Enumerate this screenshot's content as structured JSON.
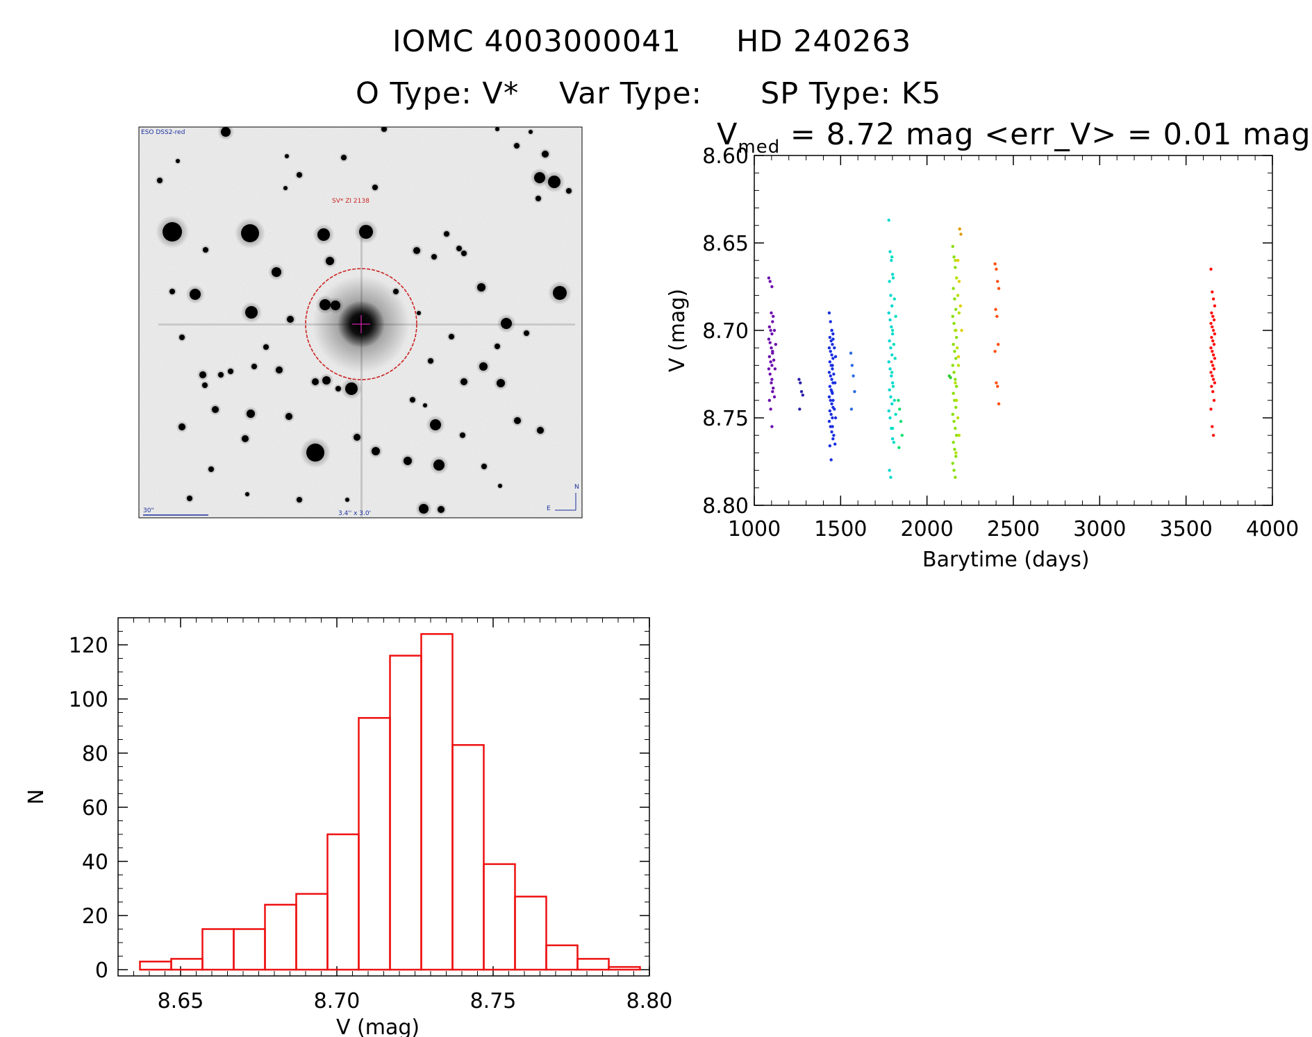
{
  "header": {
    "line1_left": "IOMC 4003000041",
    "line1_right": "HD 240263",
    "line2_otype": "O Type: V*",
    "line2_vartype": "Var Type:",
    "line2_sptype": "SP Type: K5"
  },
  "finder_image": {
    "survey_label": "ESO DSS2-red",
    "object_label": "SV* ZI 2138",
    "scale_label": "30\"",
    "fov_label": "3.4'' x 3.0'",
    "north_label": "N",
    "east_label": "E",
    "colors": {
      "circle": "#cc2222",
      "labels": "#1a2f9e"
    }
  },
  "chart_data": [
    {
      "type": "scatter",
      "title": "V_med = 8.72 mag <err_V> = 0.01 mag",
      "title_main": "V",
      "title_sub": "med",
      "title_rest": " = 8.72 mag <err_V> = 0.01 mag",
      "xlabel": "Barytime (days)",
      "ylabel": "V (mag)",
      "xlim": [
        1000,
        4000
      ],
      "ylim": [
        8.8,
        8.6
      ],
      "xticks": [
        1000,
        1500,
        2000,
        2500,
        3000,
        3500,
        4000
      ],
      "xtick_labels": [
        "1000",
        "1500",
        "2000",
        "2500",
        "3000",
        "3500",
        "4000"
      ],
      "yticks": [
        8.6,
        8.65,
        8.7,
        8.75,
        8.8
      ],
      "ytick_labels": [
        "8.60",
        "8.65",
        "8.70",
        "8.75",
        "8.80"
      ],
      "groups": [
        {
          "x": 1095,
          "color": "#6a0dad",
          "values": [
            8.67,
            8.672,
            8.69,
            8.695,
            8.698,
            8.7,
            8.702,
            8.705,
            8.707,
            8.71,
            8.712,
            8.715,
            8.718,
            8.72,
            8.722,
            8.725,
            8.73,
            8.735,
            8.74,
            8.745,
            8.755
          ]
        },
        {
          "x": 1113,
          "color": "#6a0dad",
          "values": [
            8.675,
            8.692,
            8.7,
            8.708,
            8.713,
            8.717,
            8.722,
            8.728,
            8.733,
            8.738
          ]
        },
        {
          "x": 1270,
          "color": "#2b20a8",
          "values": [
            8.728,
            8.73,
            8.735,
            8.737,
            8.745
          ]
        },
        {
          "x": 1445,
          "color": "#1a2fe0",
          "values": [
            8.69,
            8.695,
            8.7,
            8.702,
            8.704,
            8.706,
            8.708,
            8.71,
            8.712,
            8.714,
            8.716,
            8.718,
            8.72,
            8.722,
            8.724,
            8.726,
            8.728,
            8.73,
            8.732,
            8.734,
            8.736,
            8.738,
            8.74,
            8.742,
            8.744,
            8.746,
            8.748,
            8.75,
            8.752,
            8.755,
            8.758,
            8.762,
            8.766,
            8.774
          ]
        },
        {
          "x": 1460,
          "color": "#1a2fe0",
          "values": [
            8.7,
            8.705,
            8.71,
            8.715,
            8.72,
            8.725,
            8.73,
            8.735,
            8.74,
            8.745,
            8.75,
            8.755,
            8.76,
            8.765
          ]
        },
        {
          "x": 1570,
          "color": "#2a6ae0",
          "values": [
            8.713,
            8.72,
            8.726,
            8.735,
            8.745
          ]
        },
        {
          "x": 1790,
          "color": "#00d8d0",
          "values": [
            8.637,
            8.655,
            8.66,
            8.668,
            8.672,
            8.68,
            8.686,
            8.69,
            8.694,
            8.698,
            8.702,
            8.706,
            8.71,
            8.714,
            8.718,
            8.722,
            8.726,
            8.73,
            8.734,
            8.738,
            8.742,
            8.746,
            8.75,
            8.756,
            8.762,
            8.78,
            8.784
          ]
        },
        {
          "x": 1808,
          "color": "#00e0c0",
          "values": [
            8.658,
            8.67,
            8.682,
            8.692,
            8.7,
            8.708,
            8.716,
            8.724,
            8.732,
            8.74,
            8.748,
            8.756,
            8.764
          ]
        },
        {
          "x": 1845,
          "color": "#10e070",
          "values": [
            8.74,
            8.745,
            8.752,
            8.76,
            8.767
          ]
        },
        {
          "x": 2140,
          "color": "#30cc30",
          "values": [
            8.726,
            8.727
          ]
        },
        {
          "x": 2160,
          "color": "#88e000",
          "values": [
            8.652,
            8.658,
            8.664,
            8.67,
            8.676,
            8.682,
            8.688,
            8.692,
            8.696,
            8.7,
            8.704,
            8.708,
            8.712,
            8.716,
            8.72,
            8.724,
            8.728,
            8.732,
            8.736,
            8.74,
            8.744,
            8.748,
            8.752,
            8.756,
            8.76,
            8.764,
            8.768,
            8.772,
            8.776,
            8.78,
            8.784
          ]
        },
        {
          "x": 2175,
          "color": "#b8e000",
          "values": [
            8.66,
            8.67,
            8.68,
            8.69,
            8.7,
            8.71,
            8.72,
            8.73,
            8.74,
            8.75,
            8.76,
            8.77
          ]
        },
        {
          "x": 2190,
          "color": "#e0d000",
          "values": [
            8.66,
            8.672,
            8.686,
            8.7,
            8.715
          ]
        },
        {
          "x": 2200,
          "color": "#e09a00",
          "values": [
            8.642,
            8.645
          ]
        },
        {
          "x": 2405,
          "color": "#ff5010",
          "values": [
            8.662,
            8.665,
            8.672,
            8.676,
            8.688,
            8.692,
            8.708,
            8.712,
            8.73,
            8.732,
            8.742
          ]
        },
        {
          "x": 3655,
          "color": "#ff1010",
          "values": [
            8.665,
            8.678,
            8.682,
            8.686,
            8.69,
            8.692,
            8.694,
            8.696,
            8.698,
            8.7,
            8.702,
            8.704,
            8.706,
            8.708,
            8.71,
            8.712,
            8.714,
            8.716,
            8.718,
            8.72,
            8.722,
            8.724,
            8.726,
            8.728,
            8.73,
            8.732,
            8.735,
            8.74,
            8.745,
            8.755,
            8.76
          ]
        }
      ]
    },
    {
      "type": "bar",
      "subtype": "histogram",
      "xlabel": "V (mag)",
      "ylabel": "N",
      "xlim": [
        8.63,
        8.8
      ],
      "ylim": [
        0,
        130
      ],
      "xticks": [
        8.65,
        8.7,
        8.75,
        8.8
      ],
      "xtick_labels": [
        "8.65",
        "8.70",
        "8.75",
        "8.80"
      ],
      "yticks": [
        0,
        20,
        40,
        60,
        80,
        100,
        120
      ],
      "ytick_labels": [
        "0",
        "20",
        "40",
        "60",
        "80",
        "100",
        "120"
      ],
      "bin_width": 0.01,
      "bin_starts": [
        8.637,
        8.647,
        8.657,
        8.667,
        8.677,
        8.687,
        8.697,
        8.707,
        8.717,
        8.727,
        8.737,
        8.747,
        8.757,
        8.767,
        8.777,
        8.787
      ],
      "values": [
        3,
        4,
        15,
        15,
        24,
        28,
        50,
        93,
        116,
        124,
        83,
        39,
        27,
        9,
        4,
        1
      ],
      "color": "#ee1111"
    }
  ]
}
